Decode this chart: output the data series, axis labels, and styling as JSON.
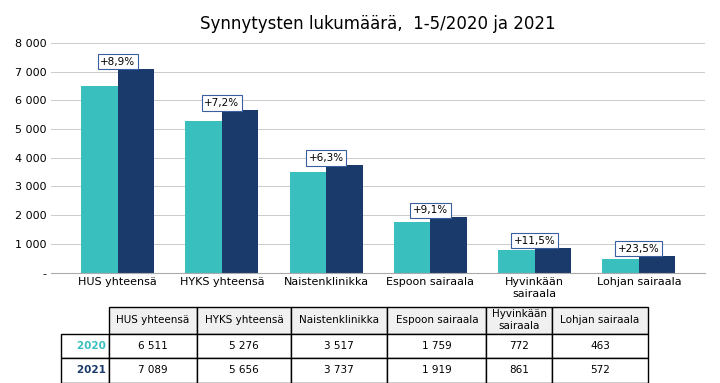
{
  "title": "Synnytysten lukumäärä,  1-5/2020 ja 2021",
  "categories": [
    "HUS yhteensä",
    "HYKS yhteensä",
    "Naistenklinikka",
    "Espoon sairaala",
    "Hyvinkään\nsairaala",
    "Lohjan sairaala"
  ],
  "values_2020": [
    6511,
    5276,
    3517,
    1759,
    772,
    463
  ],
  "values_2021": [
    7089,
    5656,
    3737,
    1919,
    861,
    572
  ],
  "pct_labels": [
    "+8,9%",
    "+7,2%",
    "+6,3%",
    "+9,1%",
    "+11,5%",
    "+23,5%"
  ],
  "color_2020": "#3abfbf",
  "color_2021": "#1a3a6b",
  "ylim": [
    0,
    8000
  ],
  "yticks": [
    0,
    1000,
    2000,
    3000,
    4000,
    5000,
    6000,
    7000,
    8000
  ],
  "ytick_labels": [
    "-",
    "1 000",
    "2 000",
    "3 000",
    "4 000",
    "5 000",
    "6 000",
    "7 000",
    "8 000"
  ],
  "legend_2020": "2020",
  "legend_2021": "2021",
  "table_row1": [
    "6 511",
    "5 276",
    "3 517",
    "1 759",
    "772",
    "463"
  ],
  "table_row2": [
    "7 089",
    "5 656",
    "3 737",
    "1 919",
    "861",
    "572"
  ],
  "background_color": "#ffffff",
  "grid_color": "#cccccc"
}
